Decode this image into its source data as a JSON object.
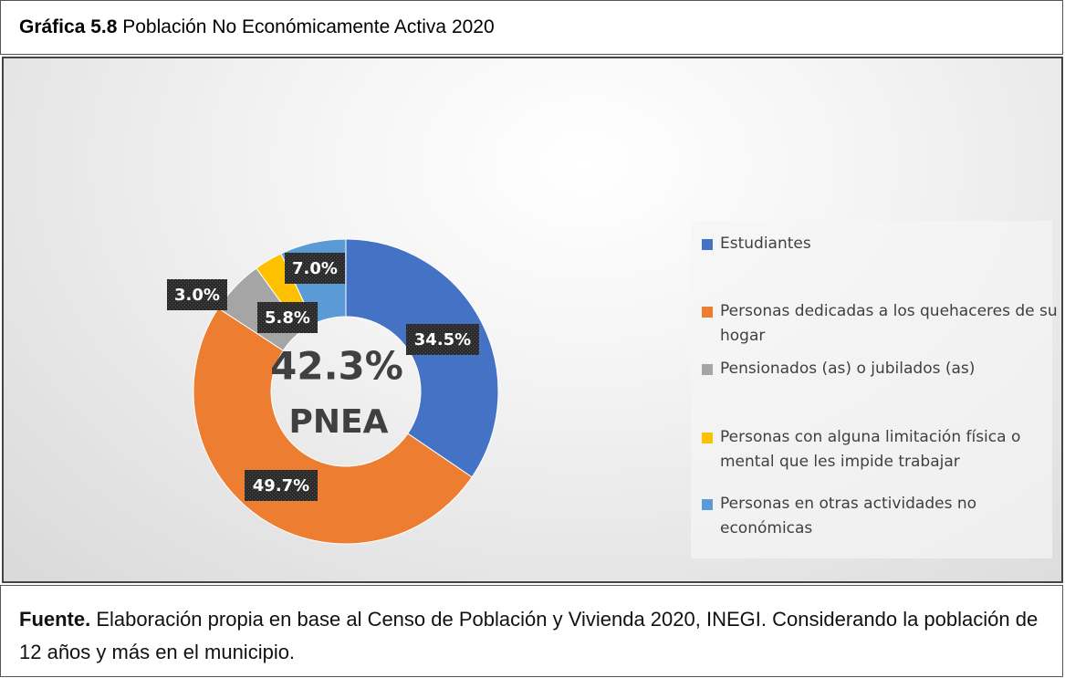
{
  "chart_data": {
    "type": "donut",
    "title_prefix": "Gráfica 5.8",
    "title": "Población No Económicamente Activa 2020",
    "categories": [
      "Estudiantes",
      "Personas dedicadas a los quehaceres de su hogar",
      "Pensionados (as) o jubilados (as)",
      "Personas con alguna limitación física o mental que les impide trabajar",
      "Personas en otras actividades no económicas"
    ],
    "values": [
      34.5,
      49.7,
      5.8,
      3.0,
      7.0
    ],
    "value_labels": [
      "34.5%",
      "49.7%",
      "5.8%",
      "3.0%",
      "7.0%"
    ],
    "colors": [
      "#4472c4",
      "#ed7d31",
      "#a5a5a5",
      "#ffc000",
      "#5b9bd5"
    ],
    "center_annotation": [
      "42.3%",
      "PNEA"
    ],
    "legend": "right",
    "source_prefix": "Fuente.",
    "source": "Elaboración propia en base al Censo de Población y Vivienda 2020, INEGI. Considerando la población de 12 años y más en el municipio."
  }
}
